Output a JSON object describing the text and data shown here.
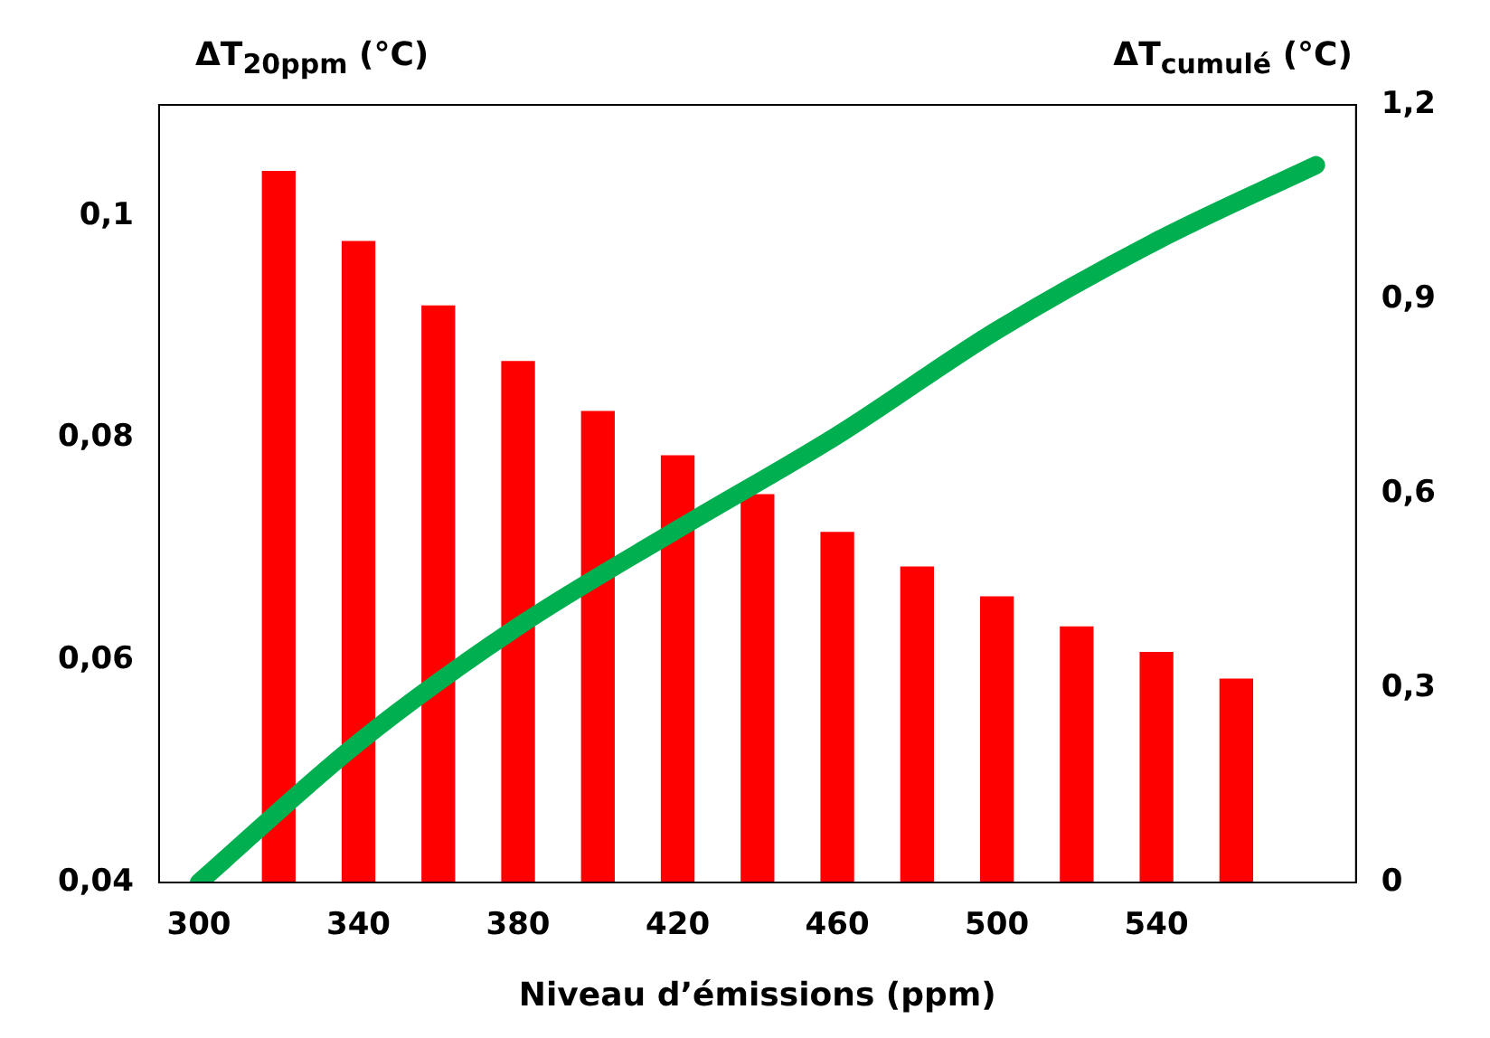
{
  "chart_data": {
    "type": "bar",
    "xlabel": "Niveau d’émissions (ppm)",
    "ylabel": "ΔT$_{20ppm}$ (°C)",
    "y2label": "ΔT$_{cumulé}$ (°C)",
    "xlim": [
      290,
      590
    ],
    "xticks": [
      300,
      340,
      380,
      420,
      460,
      500,
      540
    ],
    "ylim": [
      0.04,
      0.11
    ],
    "yticks": [
      {
        "value": 0.04,
        "label": "0,04"
      },
      {
        "value": 0.06,
        "label": "0,06"
      },
      {
        "value": 0.08,
        "label": "0,08"
      },
      {
        "value": 0.1,
        "label": "0,1"
      }
    ],
    "y2lim": [
      0,
      1.2
    ],
    "y2ticks": [
      {
        "value": 0,
        "label": "0"
      },
      {
        "value": 0.3,
        "label": "0,3"
      },
      {
        "value": 0.6,
        "label": "0,6"
      },
      {
        "value": 0.9,
        "label": "0,9"
      },
      {
        "value": 1.2,
        "label": "1,2"
      }
    ],
    "grid": false,
    "legend": false,
    "series": [
      {
        "color": "#ff0000",
        "x": [
          320,
          340,
          360,
          380,
          400,
          420,
          440,
          460,
          480,
          500,
          520,
          540,
          560
        ],
        "values": [
          0.104,
          0.0977,
          0.0919,
          0.0869,
          0.0824,
          0.0784,
          0.0749,
          0.0715,
          0.0684,
          0.0657,
          0.063,
          0.0607,
          0.0583
        ]
      },
      {
        "type": "line",
        "axis": "y2",
        "color": "#00b050",
        "x": [
          300,
          340,
          380,
          420,
          460,
          500,
          540,
          580
        ],
        "values": [
          0,
          0.216,
          0.395,
          0.545,
          0.69,
          0.852,
          0.99,
          1.107
        ]
      }
    ]
  }
}
